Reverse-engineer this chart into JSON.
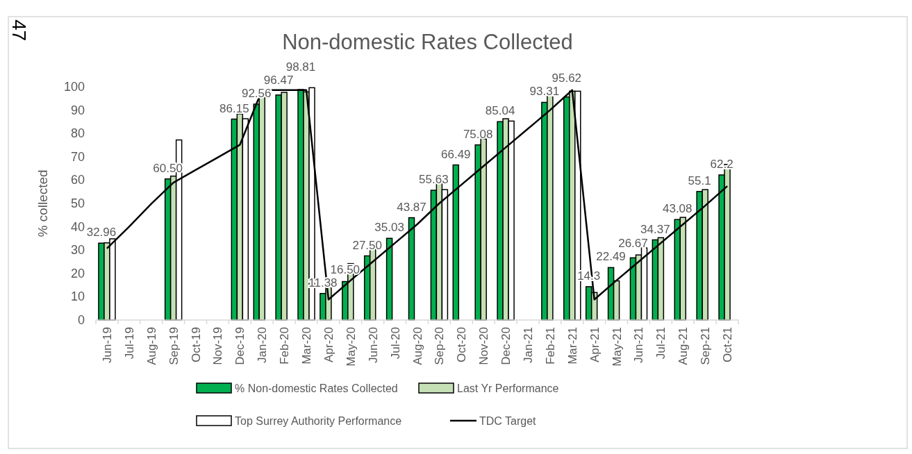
{
  "chart_data": {
    "type": "bar",
    "title": "Non-domestic Rates Collected",
    "ylabel": "% collected",
    "annotations": [
      "47"
    ],
    "categories": [
      "Jun-19",
      "Jul-19",
      "Aug-19",
      "Sep-19",
      "Oct-19",
      "Nov-19",
      "Dec-19",
      "Jan-20",
      "Feb-20",
      "Mar-20",
      "Apr-20",
      "May-20",
      "Jun-20",
      "Jul-20",
      "Aug-20",
      "Sep-20",
      "Oct-20",
      "Nov-20",
      "Dec-20",
      "Jan-21",
      "Feb-21",
      "Mar-21",
      "Apr-21",
      "May-21",
      "Jun-21",
      "Jul-21",
      "Aug-21",
      "Sep-21",
      "Oct-21"
    ],
    "ylim": [
      0,
      100
    ],
    "yticks": [
      0,
      10,
      20,
      30,
      40,
      50,
      60,
      70,
      80,
      90,
      100
    ],
    "legend": "bottom",
    "grid": false,
    "marker": "none",
    "series": [
      {
        "name": "% Non-domestic Rates Collected",
        "color": "#00b050",
        "values": [
          32.96,
          null,
          null,
          60.5,
          null,
          null,
          86.15,
          92.56,
          96.47,
          98.81,
          11.38,
          16.5,
          27.5,
          35.03,
          43.87,
          55.63,
          66.49,
          75.08,
          85.04,
          null,
          93.31,
          95.62,
          14.3,
          22.49,
          26.67,
          34.37,
          43.08,
          55.1,
          62.2
        ],
        "value_labels": [
          "32.96",
          null,
          null,
          "60.50",
          null,
          null,
          "86.15",
          "92.56",
          "96.47",
          "98.81",
          "11.38",
          "16.50",
          "27.50",
          "35.03",
          "43.87",
          "55.63",
          "66.49",
          "75.08",
          "85.04",
          null,
          "93.31",
          "95.62",
          "14.3",
          "22.49",
          "26.67",
          "34.37",
          "43.08",
          "55.1",
          "62.2"
        ]
      },
      {
        "name": "Last Yr Performance",
        "color": "#c5e0b4",
        "values": [
          33.1,
          null,
          null,
          61.7,
          null,
          null,
          88.4,
          97.6,
          97.6,
          97.8,
          15.5,
          24.2,
          33.1,
          null,
          null,
          60.6,
          null,
          77.6,
          86.3,
          null,
          96.6,
          98.1,
          11.8,
          16.8,
          27.9,
          35.3,
          44.0,
          55.9,
          66.7
        ]
      },
      {
        "name": "Top Surrey Authority Performance",
        "color": "#ffffff",
        "values": [
          34.8,
          null,
          null,
          77.2,
          null,
          null,
          86.3,
          null,
          null,
          99.6,
          null,
          null,
          null,
          null,
          null,
          55.9,
          null,
          null,
          85.3,
          null,
          null,
          98.1,
          null,
          null,
          30.9,
          null,
          null,
          null,
          null
        ]
      },
      {
        "name": "TDC Target",
        "type": "line",
        "color": "#000000",
        "line_style": "solid",
        "values": [
          30.7,
          40,
          49.8,
          58.9,
          64.3,
          69.7,
          75.1,
          98.6,
          98.6,
          98.6,
          8.8,
          17,
          25,
          33,
          41,
          50,
          58,
          66,
          74,
          82,
          90,
          98.6,
          8.8,
          17,
          25,
          33,
          41,
          49,
          57.4
        ]
      }
    ]
  }
}
